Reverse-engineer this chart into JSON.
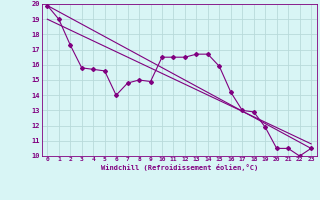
{
  "xlabel": "Windchill (Refroidissement éolien,°C)",
  "x_data": [
    0,
    1,
    2,
    3,
    4,
    5,
    6,
    7,
    8,
    9,
    10,
    11,
    12,
    13,
    14,
    15,
    16,
    17,
    18,
    19,
    20,
    21,
    22,
    23
  ],
  "y_data": [
    19.9,
    19.0,
    17.3,
    15.8,
    15.7,
    15.6,
    14.0,
    14.8,
    15.0,
    14.9,
    16.5,
    16.5,
    16.5,
    16.7,
    16.7,
    15.9,
    14.2,
    13.0,
    12.9,
    11.9,
    10.5,
    10.5,
    10.0,
    10.5
  ],
  "trend1_x": [
    0,
    23
  ],
  "trend1_y": [
    19.9,
    10.5
  ],
  "trend2_x": [
    0,
    23
  ],
  "trend2_y": [
    19.0,
    10.8
  ],
  "line_color": "#800080",
  "bg_color": "#d8f5f5",
  "grid_color": "#b8dada",
  "ylim": [
    10,
    20
  ],
  "xlim": [
    -0.5,
    23.5
  ],
  "yticks": [
    10,
    11,
    12,
    13,
    14,
    15,
    16,
    17,
    18,
    19,
    20
  ],
  "xticks": [
    0,
    1,
    2,
    3,
    4,
    5,
    6,
    7,
    8,
    9,
    10,
    11,
    12,
    13,
    14,
    15,
    16,
    17,
    18,
    19,
    20,
    21,
    22,
    23
  ]
}
